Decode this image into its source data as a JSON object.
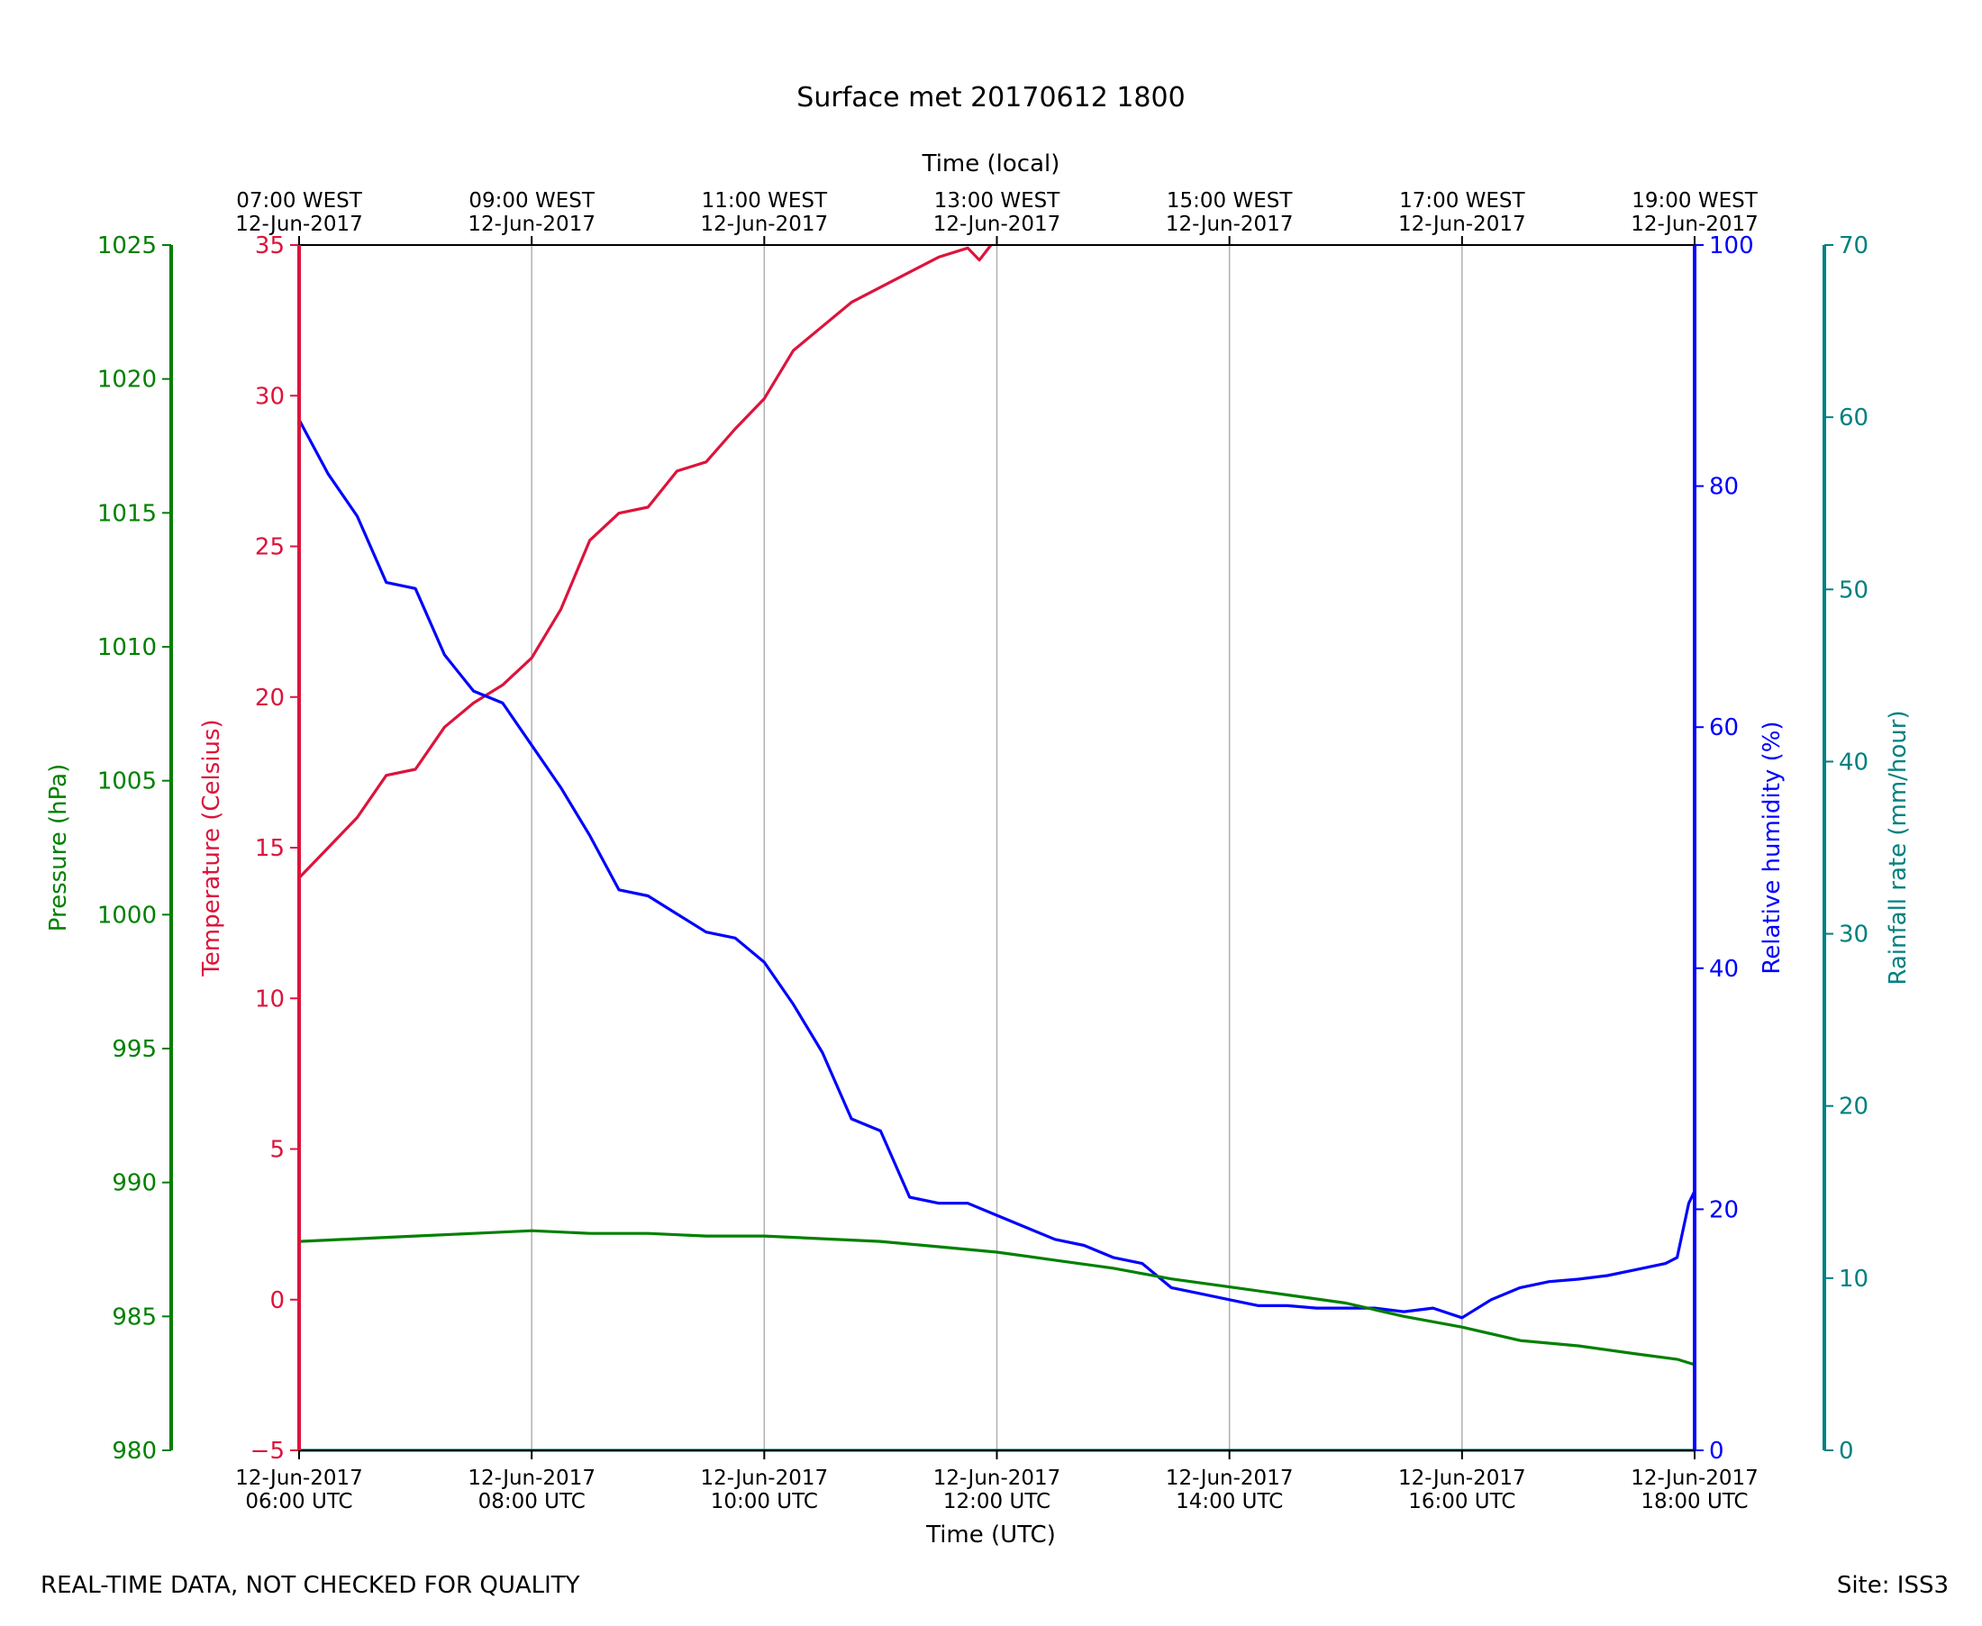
{
  "footer": {
    "left_note": "REAL-TIME DATA, NOT CHECKED FOR QUALITY",
    "site": "Site: ISS3"
  },
  "chart_data": {
    "type": "line",
    "title": "Surface met 20170612 1800",
    "colors": {
      "temperature": "#dc143c",
      "humidity": "#0000ff",
      "pressure": "#008000",
      "rainfall": "#008080",
      "grid": "#b0b0b0",
      "frame": "#000000"
    },
    "x_bottom": {
      "label": "Time (UTC)",
      "range": [
        6,
        18
      ],
      "ticks": [
        {
          "value": 6,
          "line1": "12-Jun-2017",
          "line2": "06:00 UTC"
        },
        {
          "value": 8,
          "line1": "12-Jun-2017",
          "line2": "08:00 UTC"
        },
        {
          "value": 10,
          "line1": "12-Jun-2017",
          "line2": "10:00 UTC"
        },
        {
          "value": 12,
          "line1": "12-Jun-2017",
          "line2": "12:00 UTC"
        },
        {
          "value": 14,
          "line1": "12-Jun-2017",
          "line2": "14:00 UTC"
        },
        {
          "value": 16,
          "line1": "12-Jun-2017",
          "line2": "16:00 UTC"
        },
        {
          "value": 18,
          "line1": "12-Jun-2017",
          "line2": "18:00 UTC"
        }
      ]
    },
    "x_top": {
      "label": "Time (local)",
      "ticks": [
        {
          "value": 6,
          "line1": "07:00 WEST",
          "line2": "12-Jun-2017"
        },
        {
          "value": 8,
          "line1": "09:00 WEST",
          "line2": "12-Jun-2017"
        },
        {
          "value": 10,
          "line1": "11:00 WEST",
          "line2": "12-Jun-2017"
        },
        {
          "value": 12,
          "line1": "13:00 WEST",
          "line2": "12-Jun-2017"
        },
        {
          "value": 14,
          "line1": "15:00 WEST",
          "line2": "12-Jun-2017"
        },
        {
          "value": 16,
          "line1": "17:00 WEST",
          "line2": "12-Jun-2017"
        },
        {
          "value": 18,
          "line1": "19:00 WEST",
          "line2": "12-Jun-2017"
        }
      ]
    },
    "axes": {
      "pressure": {
        "label": "Pressure (hPa)",
        "range": [
          980,
          1025
        ],
        "ticks": [
          980,
          985,
          990,
          995,
          1000,
          1005,
          1010,
          1015,
          1020,
          1025
        ]
      },
      "temperature": {
        "label": "Temperature (Celsius)",
        "range": [
          -5,
          35
        ],
        "ticks": [
          -5,
          0,
          5,
          10,
          15,
          20,
          25,
          30,
          35
        ],
        "tick_labels": [
          "−5",
          "0",
          "5",
          "10",
          "15",
          "20",
          "25",
          "30",
          "35"
        ]
      },
      "humidity": {
        "label": "Relative humidity (%)",
        "range": [
          0,
          100
        ],
        "ticks": [
          0,
          20,
          40,
          60,
          80,
          100
        ]
      },
      "rainfall": {
        "label": "Rainfall rate (mm/hour)",
        "range": [
          0,
          70
        ],
        "ticks": [
          0,
          10,
          20,
          30,
          40,
          50,
          60,
          70
        ]
      }
    },
    "series": [
      {
        "name": "Temperature",
        "axis": "temperature",
        "x": [
          6.0,
          6.25,
          6.5,
          6.75,
          7.0,
          7.25,
          7.5,
          7.75,
          8.0,
          8.25,
          8.5,
          8.75,
          9.0,
          9.25,
          9.5,
          9.75,
          10.0,
          10.25,
          10.5,
          10.75,
          11.0,
          11.25,
          11.5,
          11.75,
          11.85,
          11.95
        ],
        "values": [
          14.0,
          15.0,
          16.0,
          17.4,
          17.6,
          19.0,
          19.8,
          20.4,
          21.3,
          22.9,
          25.2,
          26.1,
          26.3,
          27.5,
          27.8,
          28.9,
          29.9,
          31.5,
          32.3,
          33.1,
          33.6,
          34.1,
          34.6,
          34.9,
          34.5,
          35.0
        ]
      },
      {
        "name": "Relative humidity",
        "axis": "humidity",
        "x": [
          6.0,
          6.25,
          6.5,
          6.75,
          7.0,
          7.25,
          7.5,
          7.75,
          8.0,
          8.25,
          8.5,
          8.75,
          9.0,
          9.25,
          9.5,
          9.75,
          10.0,
          10.25,
          10.5,
          10.75,
          11.0,
          11.25,
          11.5,
          11.75,
          12.0,
          12.25,
          12.5,
          12.75,
          13.0,
          13.25,
          13.5,
          13.75,
          14.0,
          14.25,
          14.5,
          14.75,
          15.0,
          15.25,
          15.5,
          15.75,
          16.0,
          16.25,
          16.5,
          16.75,
          17.0,
          17.25,
          17.5,
          17.75,
          17.85,
          17.95,
          18.0
        ],
        "values": [
          85.5,
          81.0,
          77.5,
          72.0,
          71.5,
          66.0,
          63.0,
          62.0,
          58.5,
          55.0,
          51.0,
          46.5,
          46.0,
          44.5,
          43.0,
          42.5,
          40.5,
          37.0,
          33.0,
          27.5,
          26.5,
          21.0,
          20.5,
          20.5,
          19.5,
          18.5,
          17.5,
          17.0,
          16.0,
          15.5,
          13.5,
          13.0,
          12.5,
          12.0,
          12.0,
          11.8,
          11.8,
          11.8,
          11.5,
          11.8,
          11.0,
          12.5,
          13.5,
          14.0,
          14.2,
          14.5,
          15.0,
          15.5,
          16.0,
          20.5,
          21.5
        ]
      },
      {
        "name": "Pressure",
        "axis": "pressure",
        "x": [
          6.0,
          6.5,
          7.0,
          7.5,
          8.0,
          8.5,
          9.0,
          9.5,
          10.0,
          10.5,
          11.0,
          11.5,
          12.0,
          12.5,
          13.0,
          13.5,
          14.0,
          14.5,
          15.0,
          15.5,
          16.0,
          16.5,
          17.0,
          17.5,
          17.85,
          18.0
        ],
        "values": [
          987.8,
          987.9,
          988.0,
          988.1,
          988.2,
          988.1,
          988.1,
          988.0,
          988.0,
          987.9,
          987.8,
          987.6,
          987.4,
          987.1,
          986.8,
          986.4,
          986.1,
          985.8,
          985.5,
          985.0,
          984.6,
          984.1,
          983.9,
          983.6,
          983.4,
          983.2
        ]
      },
      {
        "name": "Rainfall rate",
        "axis": "rainfall",
        "x": [
          6.0,
          18.0
        ],
        "values": [
          0.0,
          0.0
        ]
      }
    ]
  }
}
